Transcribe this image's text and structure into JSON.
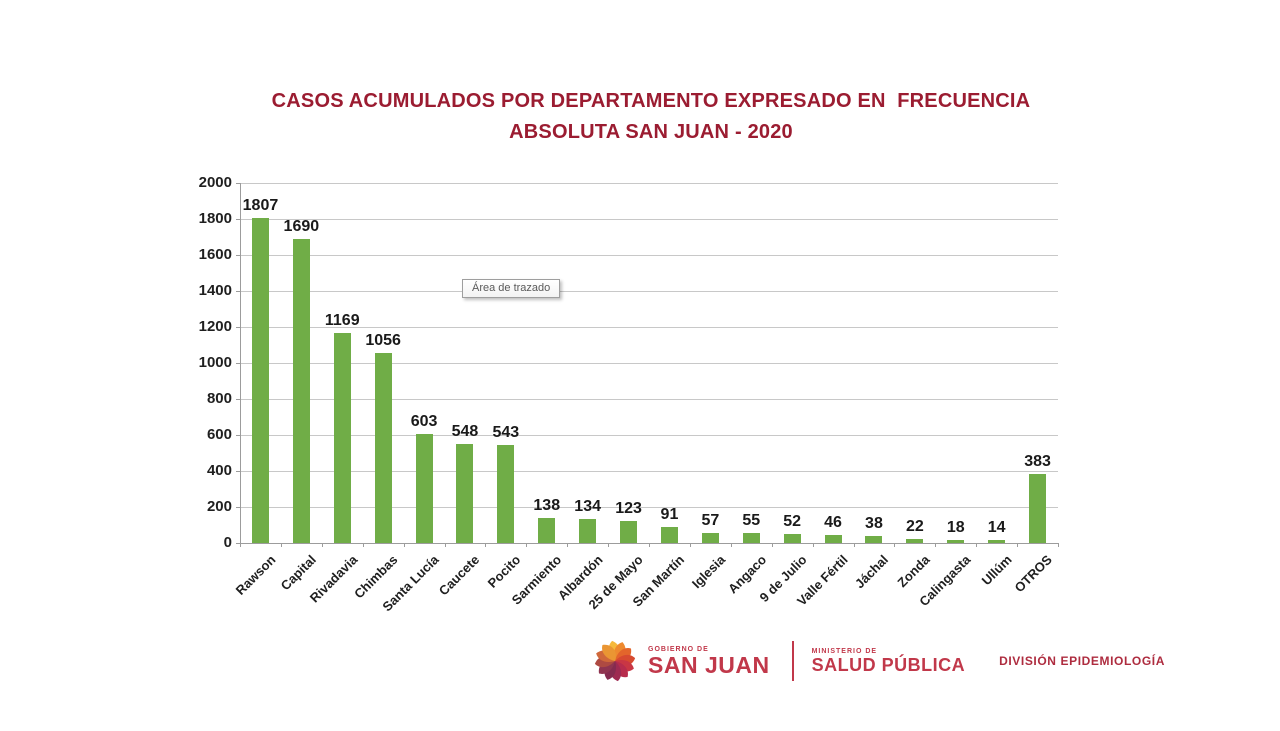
{
  "title": {
    "line1": "CASOS ACUMULADOS POR DEPARTAMENTO EXPRESADO EN  FRECUENCIA",
    "line2": "ABSOLUTA SAN JUAN - 2020"
  },
  "tooltip": {
    "text": "Área de trazado"
  },
  "chart_data": {
    "type": "bar",
    "title": "CASOS ACUMULADOS POR DEPARTAMENTO EXPRESADO EN FRECUENCIA ABSOLUTA SAN JUAN - 2020",
    "categories": [
      "Rawson",
      "Capital",
      "Rivadavia",
      "Chimbas",
      "Santa Lucía",
      "Caucete",
      "Pocito",
      "Sarmiento",
      "Albardón",
      "25 de Mayo",
      "San Martín",
      "Iglesia",
      "Angaco",
      "9 de Julio",
      "Valle Fértil",
      "Jáchal",
      "Zonda",
      "Calingasta",
      "Ullúm",
      "OTROS"
    ],
    "values": [
      1807,
      1690,
      1169,
      1056,
      603,
      548,
      543,
      138,
      134,
      123,
      91,
      57,
      55,
      52,
      46,
      38,
      22,
      18,
      14,
      383
    ],
    "xlabel": "",
    "ylabel": "",
    "ylim": [
      0,
      2000
    ],
    "yticks": [
      0,
      200,
      400,
      600,
      800,
      1000,
      1200,
      1400,
      1600,
      1800,
      2000
    ],
    "grid": true,
    "legend_position": "none",
    "bar_color": "#70AD47",
    "data_labels": true
  },
  "footer": {
    "gov_small": "GOBIERNO DE",
    "gov_large": "SAN JUAN",
    "ministry_small": "MINISTERIO DE",
    "ministry_large": "SALUD PÚBLICA",
    "division": "DIVISIÓN EPIDEMIOLOGÍA"
  },
  "colors": {
    "title_text": "#9B1C31",
    "bar": "#70AD47",
    "gridline": "#C8C8C8",
    "axis": "#9C9C9C",
    "brand_red": "#C1384A"
  }
}
